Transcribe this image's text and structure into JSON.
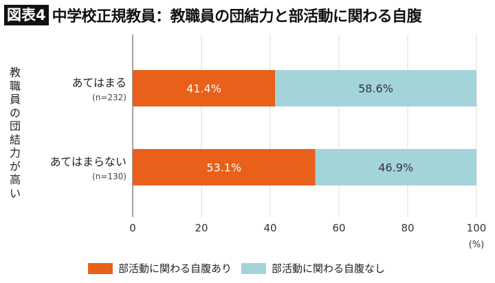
{
  "header": {
    "badge": "図表4",
    "title": "中学校正規教員：教職員の団結力と部活動に関わる自腹"
  },
  "chart_data": {
    "type": "bar",
    "orientation": "horizontal",
    "stacked": true,
    "title": "中学校正規教員：教職員の団結力と部活動に関わる自腹",
    "ylabel": "教職員の団結力が高い",
    "xlabel": "",
    "x_unit": "(%)",
    "xlim": [
      0,
      100
    ],
    "xticks": [
      "0",
      "20",
      "40",
      "60",
      "80",
      "100"
    ],
    "grid": true,
    "legend_position": "bottom",
    "categories": [
      {
        "label": "あてはまる",
        "n": "(n=232)"
      },
      {
        "label": "あてはまらない",
        "n": "(n=130)"
      }
    ],
    "series": [
      {
        "name": "部活動に関わる自腹あり",
        "color": "#e8601a",
        "values": [
          41.4,
          53.1
        ],
        "labels": [
          "41.4%",
          "53.1%"
        ]
      },
      {
        "name": "部活動に関わる自腹なし",
        "color": "#a3d4da",
        "values": [
          58.6,
          46.9
        ],
        "labels": [
          "58.6%",
          "46.9%"
        ]
      }
    ]
  }
}
